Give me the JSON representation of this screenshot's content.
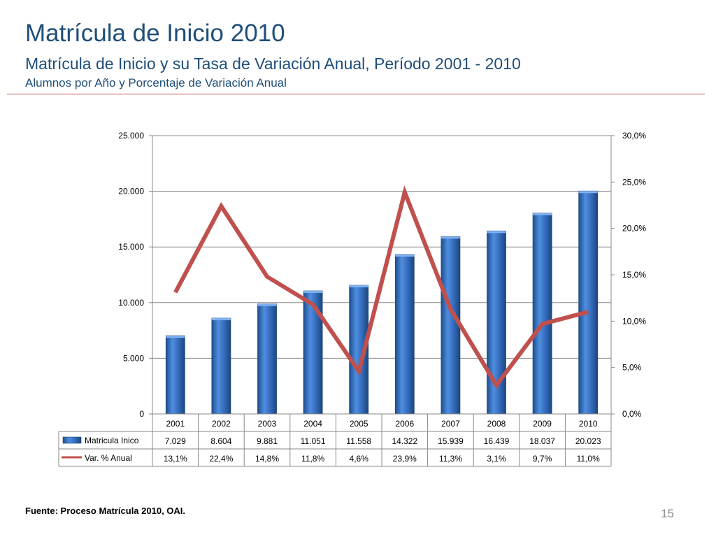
{
  "header": {
    "title": "Matrícula de Inicio 2010",
    "subtitle": "Matrícula de Inicio y su Tasa de Variación Anual, Período 2001 - 2010",
    "subsubtitle": "Alumnos por Año y Porcentaje de Variación Anual"
  },
  "footer": {
    "source": "Fuente: Proceso Matrícula 2010, OAI.",
    "page_number": "15"
  },
  "colors": {
    "title": "#1f4e79",
    "bar": "#3a72c4",
    "line": "#c0504d",
    "rule": "#c0504d"
  },
  "chart_data": {
    "type": "bar",
    "categories": [
      "2001",
      "2002",
      "2003",
      "2004",
      "2005",
      "2006",
      "2007",
      "2008",
      "2009",
      "2010"
    ],
    "series": [
      {
        "name": "Matricula Inico",
        "type": "bar",
        "axis": "left",
        "values": [
          7029,
          8604,
          9881,
          11051,
          11558,
          14322,
          15939,
          16439,
          18037,
          20023
        ],
        "labels": [
          "7.029",
          "8.604",
          "9.881",
          "11.051",
          "11.558",
          "14.322",
          "15.939",
          "16.439",
          "18.037",
          "20.023"
        ]
      },
      {
        "name": "Var. % Anual",
        "type": "line",
        "axis": "right",
        "values": [
          13.1,
          22.4,
          14.8,
          11.8,
          4.6,
          23.9,
          11.3,
          3.1,
          9.7,
          11.0
        ],
        "labels": [
          "13,1%",
          "22,4%",
          "14,8%",
          "11,8%",
          "4,6%",
          "23,9%",
          "11,3%",
          "3,1%",
          "9,7%",
          "11,0%"
        ]
      }
    ],
    "ylim_left": [
      0,
      25000
    ],
    "ylim_right": [
      0,
      30
    ],
    "yticks_left": [
      "0",
      "5.000",
      "10.000",
      "15.000",
      "20.000",
      "25.000"
    ],
    "yticks_right": [
      "0,0%",
      "5,0%",
      "10,0%",
      "15,0%",
      "20,0%",
      "25,0%",
      "30,0%"
    ],
    "grid": true,
    "data_table": true
  }
}
